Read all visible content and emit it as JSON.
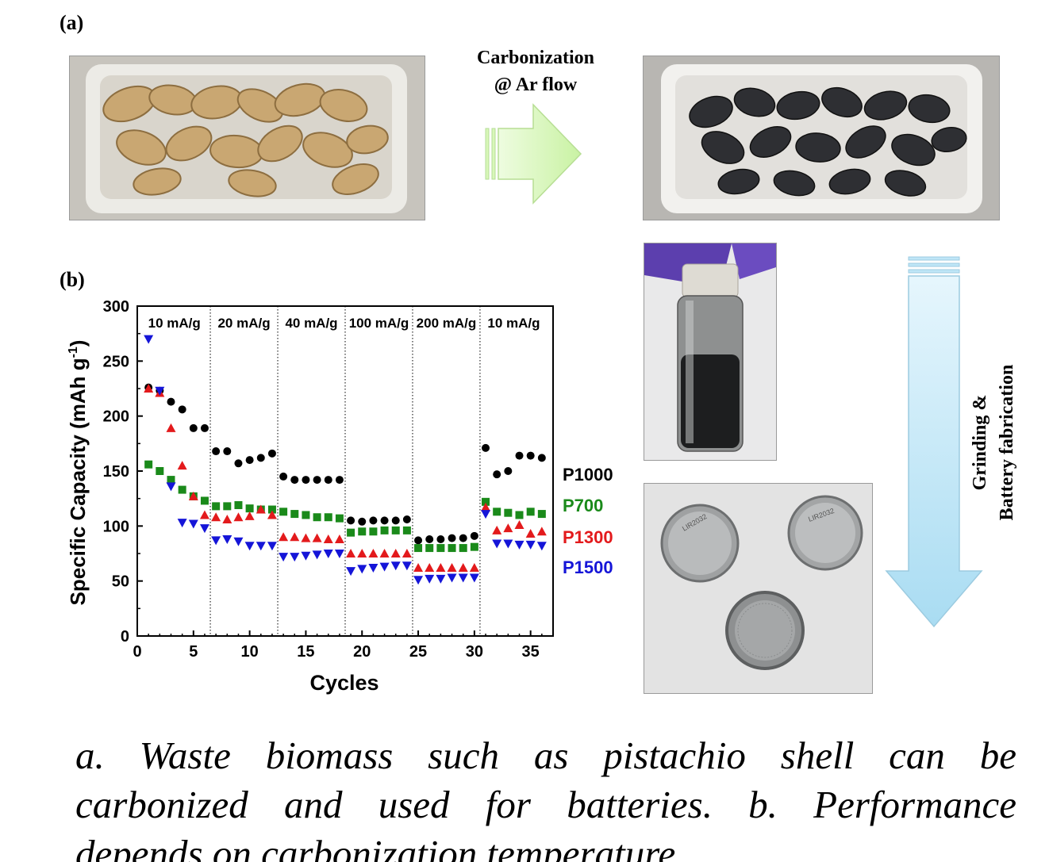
{
  "figure": {
    "panel_a_label": "(a)",
    "panel_b_label": "(b)",
    "arrow_top_line1": "Carbonization",
    "arrow_top_line2": "@ Ar flow",
    "arrow_side_line1": "Grinding &",
    "arrow_side_line2": "Battery fabrication",
    "caption_line1": "a. Waste biomass such as pistachio shell can be",
    "caption_line2": "carbonized and used for batteries. b. Performance",
    "caption_line3": "depends on carbonization temperature"
  },
  "colors": {
    "P1000": "#000000",
    "P700": "#1a8a1a",
    "P1300": "#e31a1c",
    "P1500": "#1515d8",
    "arrow_green": "#d8f7b8",
    "arrow_blue": "#bfe6f7"
  },
  "chart_data": {
    "type": "scatter",
    "xlabel": "Cycles",
    "ylabel": "Specific Capacity (mAh g⁻¹)",
    "xlim": [
      0,
      37
    ],
    "ylim": [
      0,
      300
    ],
    "xticks": [
      0,
      5,
      10,
      15,
      20,
      25,
      30,
      35
    ],
    "yticks": [
      0,
      50,
      100,
      150,
      200,
      250,
      300
    ],
    "grid": false,
    "legend_placement": "right of plot",
    "rate_dividers": [
      6.5,
      12.5,
      18.5,
      24.5,
      30.5
    ],
    "rate_labels": [
      {
        "text": "10 mA/g",
        "x": 3.3
      },
      {
        "text": "20 mA/g",
        "x": 9.5
      },
      {
        "text": "40 mA/g",
        "x": 15.5
      },
      {
        "text": "100 mA/g",
        "x": 21.5
      },
      {
        "text": "200 mA/g",
        "x": 27.5
      },
      {
        "text": "10 mA/g",
        "x": 33.5
      }
    ],
    "x": [
      1,
      2,
      3,
      4,
      5,
      6,
      7,
      8,
      9,
      10,
      11,
      12,
      13,
      14,
      15,
      16,
      17,
      18,
      19,
      20,
      21,
      22,
      23,
      24,
      25,
      26,
      27,
      28,
      29,
      30,
      31,
      32,
      33,
      34,
      35,
      36
    ],
    "series": [
      {
        "name": "P1000",
        "marker": "circle",
        "values": [
          226,
          223,
          213,
          206,
          189,
          189,
          168,
          168,
          157,
          160,
          162,
          166,
          145,
          142,
          142,
          142,
          142,
          142,
          105,
          104,
          105,
          105,
          105,
          106,
          87,
          88,
          88,
          89,
          89,
          91,
          171,
          147,
          150,
          164,
          164,
          162
        ]
      },
      {
        "name": "P700",
        "marker": "square",
        "values": [
          156,
          150,
          142,
          133,
          127,
          123,
          118,
          118,
          119,
          116,
          115,
          115,
          113,
          111,
          110,
          108,
          108,
          107,
          94,
          95,
          95,
          96,
          96,
          96,
          80,
          80,
          80,
          80,
          80,
          81,
          122,
          113,
          112,
          110,
          113,
          111
        ]
      },
      {
        "name": "P1300",
        "marker": "triangle-up",
        "values": [
          225,
          221,
          189,
          155,
          127,
          110,
          108,
          106,
          108,
          109,
          115,
          110,
          90,
          90,
          89,
          89,
          88,
          88,
          75,
          75,
          75,
          75,
          75,
          75,
          62,
          62,
          62,
          62,
          62,
          62,
          117,
          96,
          98,
          101,
          93,
          95
        ]
      },
      {
        "name": "P1500",
        "marker": "triangle-down",
        "values": [
          270,
          223,
          136,
          103,
          102,
          98,
          87,
          88,
          86,
          82,
          82,
          82,
          72,
          72,
          73,
          74,
          75,
          75,
          59,
          61,
          62,
          63,
          64,
          64,
          51,
          52,
          52,
          53,
          53,
          53,
          111,
          84,
          84,
          83,
          83,
          82
        ]
      }
    ]
  }
}
